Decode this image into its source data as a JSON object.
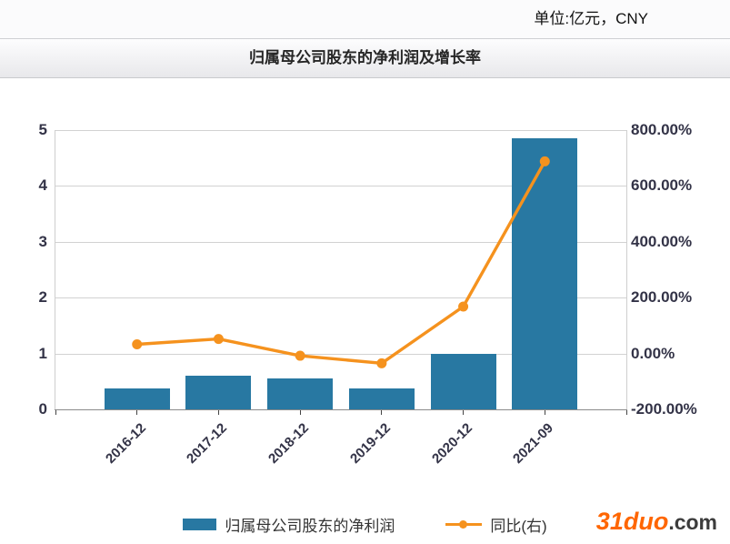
{
  "header": {
    "unit_label": "单位:亿元，CNY"
  },
  "title_bar": {
    "title": "归属母公司股东的净利润及增长率"
  },
  "colors": {
    "bar_blue": "#2878a2",
    "line_orange": "#f5921e",
    "brand_orange": "#ff6600",
    "axis_text": "#333347",
    "grid": "#d2d2d2"
  },
  "chart_data": {
    "type": "bar",
    "subtype": "combo-bar-line-dual-axis",
    "title": "归属母公司股东的净利润及增长率",
    "categories": [
      "2016-12",
      "2017-12",
      "2018-12",
      "2019-12",
      "2020-12",
      "2021-09"
    ],
    "series": [
      {
        "name": "归属母公司股东的净利润",
        "type": "bar",
        "axis": "left",
        "unit": "亿元",
        "values": [
          0.38,
          0.6,
          0.55,
          0.38,
          1.0,
          4.85
        ]
      },
      {
        "name": "同比(右)",
        "type": "line",
        "axis": "right",
        "unit": "%",
        "values": [
          33,
          52,
          -8,
          -35,
          168,
          688
        ]
      }
    ],
    "left_axis": {
      "min": 0,
      "max": 5,
      "tick_labels": [
        "0",
        "1",
        "2",
        "3",
        "4",
        "5"
      ]
    },
    "right_axis": {
      "min": -200,
      "max": 800,
      "tick_labels": [
        "800.00%",
        "600.00%",
        "400.00%",
        "200.00%",
        "0.00%",
        "-200.00%"
      ]
    },
    "grid": true,
    "legend_position": "bottom"
  },
  "legend": {
    "items": [
      {
        "label": "归属母公司股东的净利润",
        "marker": "bar-swatch"
      },
      {
        "label": "同比(右)",
        "marker": "line-dot"
      }
    ]
  },
  "watermark": {
    "brand": "31duo",
    "suffix": ".com"
  }
}
